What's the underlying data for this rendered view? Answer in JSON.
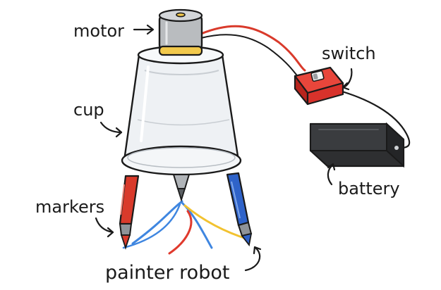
{
  "labels": {
    "motor": "motor",
    "switch": "switch",
    "cup": "cup",
    "battery": "battery",
    "markers": "markers",
    "caption": "painter robot"
  },
  "colors": {
    "outline": "#1a1a1a",
    "motor_body": "#b9bcbf",
    "motor_band": "#f2c94c",
    "cup_fill": "#eef1f4",
    "wire_red": "#d93a2b",
    "switch_red": "#d8322b",
    "battery_body": "#2e2f31",
    "marker_red": "#d93a2b",
    "marker_blue": "#2f63c9",
    "stroke_blue": "#3f86e0",
    "stroke_red": "#e03a2d",
    "stroke_yellow": "#f2c230",
    "marker_tip": "#8f9398"
  },
  "icons": [
    "motor-icon",
    "cup-icon",
    "switch-icon",
    "battery-icon",
    "red-marker-icon",
    "blue-marker-icon",
    "center-tip-icon"
  ]
}
